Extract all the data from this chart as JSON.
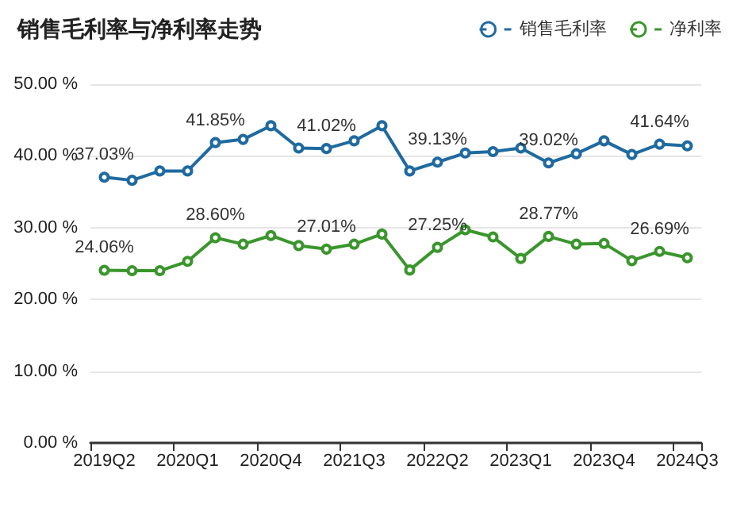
{
  "chart_data": {
    "type": "line",
    "title": "销售毛利率与净利率走势",
    "categories": [
      "2019Q2",
      null,
      null,
      "2020Q1",
      null,
      null,
      "2020Q4",
      null,
      null,
      "2021Q3",
      null,
      null,
      "2022Q2",
      null,
      null,
      "2023Q1",
      null,
      null,
      "2023Q4",
      null,
      null,
      "2024Q3"
    ],
    "series": [
      {
        "name": "销售毛利率",
        "color": "#1f6aa0",
        "values": [
          37.03,
          36.6,
          37.9,
          37.9,
          41.85,
          42.3,
          44.2,
          41.1,
          41.02,
          42.1,
          44.2,
          37.9,
          39.13,
          40.4,
          40.6,
          41.1,
          39.02,
          40.3,
          42.1,
          40.2,
          41.64,
          41.4
        ],
        "value_labels": [
          "37.03%",
          null,
          null,
          null,
          "41.85%",
          null,
          null,
          null,
          "41.02%",
          null,
          null,
          null,
          "39.13%",
          null,
          null,
          null,
          "39.02%",
          null,
          null,
          null,
          "41.64%",
          null
        ]
      },
      {
        "name": "净利率",
        "color": "#3a962c",
        "values": [
          24.06,
          24.0,
          24.0,
          25.3,
          28.6,
          27.7,
          28.9,
          27.5,
          27.01,
          27.7,
          29.1,
          24.1,
          27.25,
          29.7,
          28.7,
          25.7,
          28.77,
          27.7,
          27.8,
          25.4,
          26.69,
          25.8
        ],
        "value_labels": [
          "24.06%",
          null,
          null,
          null,
          "28.60%",
          null,
          null,
          null,
          "27.01%",
          null,
          null,
          null,
          "27.25%",
          null,
          null,
          null,
          "28.77%",
          null,
          null,
          null,
          "26.69%",
          null
        ]
      }
    ],
    "ylim": [
      0,
      50
    ],
    "yticks": [
      {
        "value": 0,
        "label": "0.00 %"
      },
      {
        "value": 10,
        "label": "10.00 %"
      },
      {
        "value": 20,
        "label": "20.00 %"
      },
      {
        "value": 30,
        "label": "30.00 %"
      },
      {
        "value": 40,
        "label": "40.00 %"
      },
      {
        "value": 50,
        "label": "50.00 %"
      }
    ],
    "grid": "y",
    "legend": "top right",
    "marker": "circle",
    "line_style": "solid"
  }
}
